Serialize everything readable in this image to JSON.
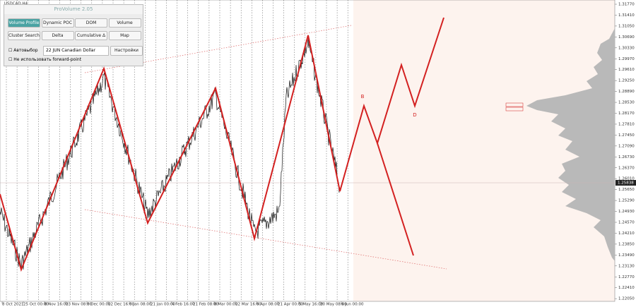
{
  "window": {
    "symbol": "USDCAD,H4"
  },
  "panel": {
    "title": "ProVolume 2.05",
    "buttons": [
      "Volume Profile",
      "Dynamic POC",
      "DOM",
      "Volume",
      "Cluster Search",
      "Delta",
      "Cumulative Δ",
      "Map"
    ],
    "auto_label": "Автовыбор",
    "instrument": "22 JUN Canadian Dollar",
    "settings": "Настройки",
    "forward_point": "Не использовать forward-point"
  },
  "price_axis": {
    "labels": [
      "1.31770",
      "1.31410",
      "1.31050",
      "1.30690",
      "1.30330",
      "1.29970",
      "1.29610",
      "1.29250",
      "1.28890",
      "1.28530",
      "1.28170",
      "1.27810",
      "1.27450",
      "1.27090",
      "1.26730",
      "1.26370",
      "1.26010",
      "1.25650",
      "1.25290",
      "1.24930",
      "1.24570",
      "1.24210",
      "1.23850",
      "1.23490",
      "1.23130",
      "1.22770",
      "1.22410",
      "1.22050"
    ],
    "current": "1.25838"
  },
  "time_axis": {
    "labels": [
      "8 Oct 2021",
      "25 Oct 00:00",
      "8 Nov 16:00",
      "23 Nov 08:00",
      "8 Dec 00:00",
      "22 Dec 16:00",
      "6 Jan 08:00",
      "21 Jan 00:00",
      "4 Feb 16:00",
      "21 Feb 08:00",
      "8 Mar 00:00",
      "22 Mar 16:00",
      "6 Apr 08:00",
      "21 Apr 00:00",
      "5 May 16:00",
      "20 May 08:00",
      "6 Jun 00:00"
    ]
  },
  "annotations": [
    "B",
    "D"
  ]
}
